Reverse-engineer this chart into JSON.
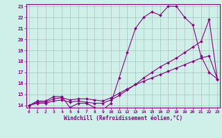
{
  "xlabel": "Windchill (Refroidissement éolien,°C)",
  "background_color": "#cef0e8",
  "grid_color": "#b0b0b0",
  "line_color": "#880088",
  "x_values": [
    0,
    1,
    2,
    3,
    4,
    5,
    6,
    7,
    8,
    9,
    10,
    11,
    12,
    13,
    14,
    15,
    16,
    17,
    18,
    19,
    20,
    21,
    22,
    23
  ],
  "line1_y": [
    14.0,
    14.4,
    14.4,
    14.8,
    14.8,
    13.8,
    14.2,
    14.2,
    13.8,
    13.6,
    14.2,
    16.5,
    18.8,
    21.0,
    22.0,
    22.5,
    22.2,
    23.0,
    23.0,
    22.0,
    21.3,
    18.5,
    17.0,
    16.4
  ],
  "line2_y": [
    14.0,
    14.3,
    14.3,
    14.6,
    14.7,
    14.5,
    14.6,
    14.6,
    14.5,
    14.4,
    14.7,
    15.1,
    15.5,
    15.9,
    16.2,
    16.5,
    16.8,
    17.1,
    17.4,
    17.7,
    18.0,
    18.3,
    18.5,
    16.4
  ],
  "line3_y": [
    14.0,
    14.2,
    14.2,
    14.4,
    14.5,
    14.3,
    14.4,
    14.3,
    14.2,
    14.2,
    14.5,
    14.9,
    15.4,
    15.9,
    16.5,
    17.0,
    17.5,
    17.9,
    18.3,
    18.8,
    19.3,
    19.8,
    21.8,
    16.4
  ],
  "ylim": [
    14,
    23
  ],
  "xlim": [
    0,
    23
  ],
  "yticks": [
    14,
    15,
    16,
    17,
    18,
    19,
    20,
    21,
    22,
    23
  ],
  "xticks": [
    0,
    1,
    2,
    3,
    4,
    5,
    6,
    7,
    8,
    9,
    10,
    11,
    12,
    13,
    14,
    15,
    16,
    17,
    18,
    19,
    20,
    21,
    22,
    23
  ]
}
